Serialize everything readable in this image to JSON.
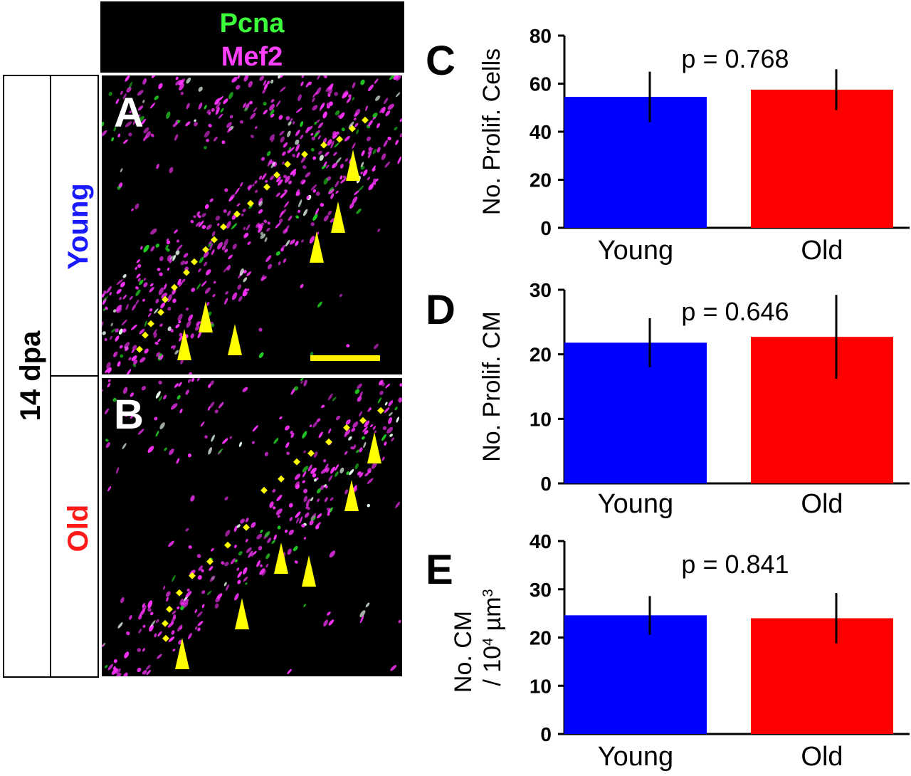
{
  "figure": {
    "header": {
      "stain_1": "Pcna",
      "stain_2": "Mef2",
      "stain_1_color": "#3cff3c",
      "stain_2_color": "#ff40ff"
    },
    "row_label": "14 dpa",
    "groups": [
      {
        "label": "Young",
        "color": "#1a1aff",
        "panel_letter": "A"
      },
      {
        "label": "Old",
        "color": "#ff1a1a",
        "panel_letter": "B"
      }
    ],
    "marker_color": "#ffff00",
    "scalebar_color": "#ffee00"
  },
  "chart_data": [
    {
      "type": "bar",
      "panel_letter": "C",
      "categories": [
        "Young",
        "Old"
      ],
      "values": [
        54.5,
        57.5
      ],
      "errors": [
        10.5,
        8.5
      ],
      "colors": [
        "#0000ff",
        "#ff0000"
      ],
      "ylabel": "No. Prolif. Cells",
      "ylim": [
        0,
        80
      ],
      "yticks": [
        0,
        20,
        40,
        60,
        80
      ],
      "annotation": "p = 0.768",
      "grid": false
    },
    {
      "type": "bar",
      "panel_letter": "D",
      "categories": [
        "Young",
        "Old"
      ],
      "values": [
        21.8,
        22.7
      ],
      "errors": [
        3.8,
        6.5
      ],
      "colors": [
        "#0000ff",
        "#ff0000"
      ],
      "ylabel": "No. Prolif. CM",
      "ylim": [
        0,
        30
      ],
      "yticks": [
        0,
        10,
        20,
        30
      ],
      "annotation": "p = 0.646",
      "grid": false
    },
    {
      "type": "bar",
      "panel_letter": "E",
      "categories": [
        "Young",
        "Old"
      ],
      "values": [
        24.6,
        24.0
      ],
      "errors": [
        4.0,
        5.2
      ],
      "colors": [
        "#0000ff",
        "#ff0000"
      ],
      "ylabel_line1": "No. CM",
      "ylabel_line2_prefix": "/ 10",
      "ylabel_line2_sup": "4",
      "ylabel_line2_suffix": " µm",
      "ylabel_line2_sup2": "3",
      "ylim": [
        0,
        40
      ],
      "yticks": [
        0,
        10,
        20,
        30,
        40
      ],
      "annotation": "p = 0.841",
      "grid": false
    }
  ]
}
